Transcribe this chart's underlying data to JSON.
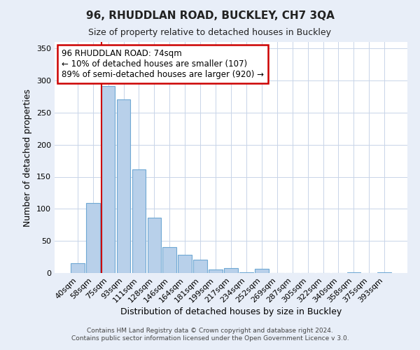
{
  "title": "96, RHUDDLAN ROAD, BUCKLEY, CH7 3QA",
  "subtitle": "Size of property relative to detached houses in Buckley",
  "xlabel": "Distribution of detached houses by size in Buckley",
  "ylabel": "Number of detached properties",
  "bar_labels": [
    "40sqm",
    "58sqm",
    "75sqm",
    "93sqm",
    "111sqm",
    "128sqm",
    "146sqm",
    "164sqm",
    "181sqm",
    "199sqm",
    "217sqm",
    "234sqm",
    "252sqm",
    "269sqm",
    "287sqm",
    "305sqm",
    "322sqm",
    "340sqm",
    "358sqm",
    "375sqm",
    "393sqm"
  ],
  "bar_values": [
    15,
    109,
    291,
    271,
    161,
    86,
    40,
    28,
    21,
    5,
    8,
    1,
    7,
    0,
    0,
    0,
    0,
    0,
    1,
    0,
    1
  ],
  "bar_color": "#b8d0ea",
  "bar_edge_color": "#6fa8d4",
  "ylim": [
    0,
    360
  ],
  "yticks": [
    0,
    50,
    100,
    150,
    200,
    250,
    300,
    350
  ],
  "property_line_x": 1.575,
  "property_line_color": "#cc0000",
  "annotation_title": "96 RHUDDLAN ROAD: 74sqm",
  "annotation_line1": "← 10% of detached houses are smaller (107)",
  "annotation_line2": "89% of semi-detached houses are larger (920) →",
  "annotation_box_color": "#cc0000",
  "footnote1": "Contains HM Land Registry data © Crown copyright and database right 2024.",
  "footnote2": "Contains public sector information licensed under the Open Government Licence v 3.0.",
  "bg_color": "#e8eef8",
  "plot_bg_color": "#ffffff",
  "grid_color": "#c8d4e8"
}
